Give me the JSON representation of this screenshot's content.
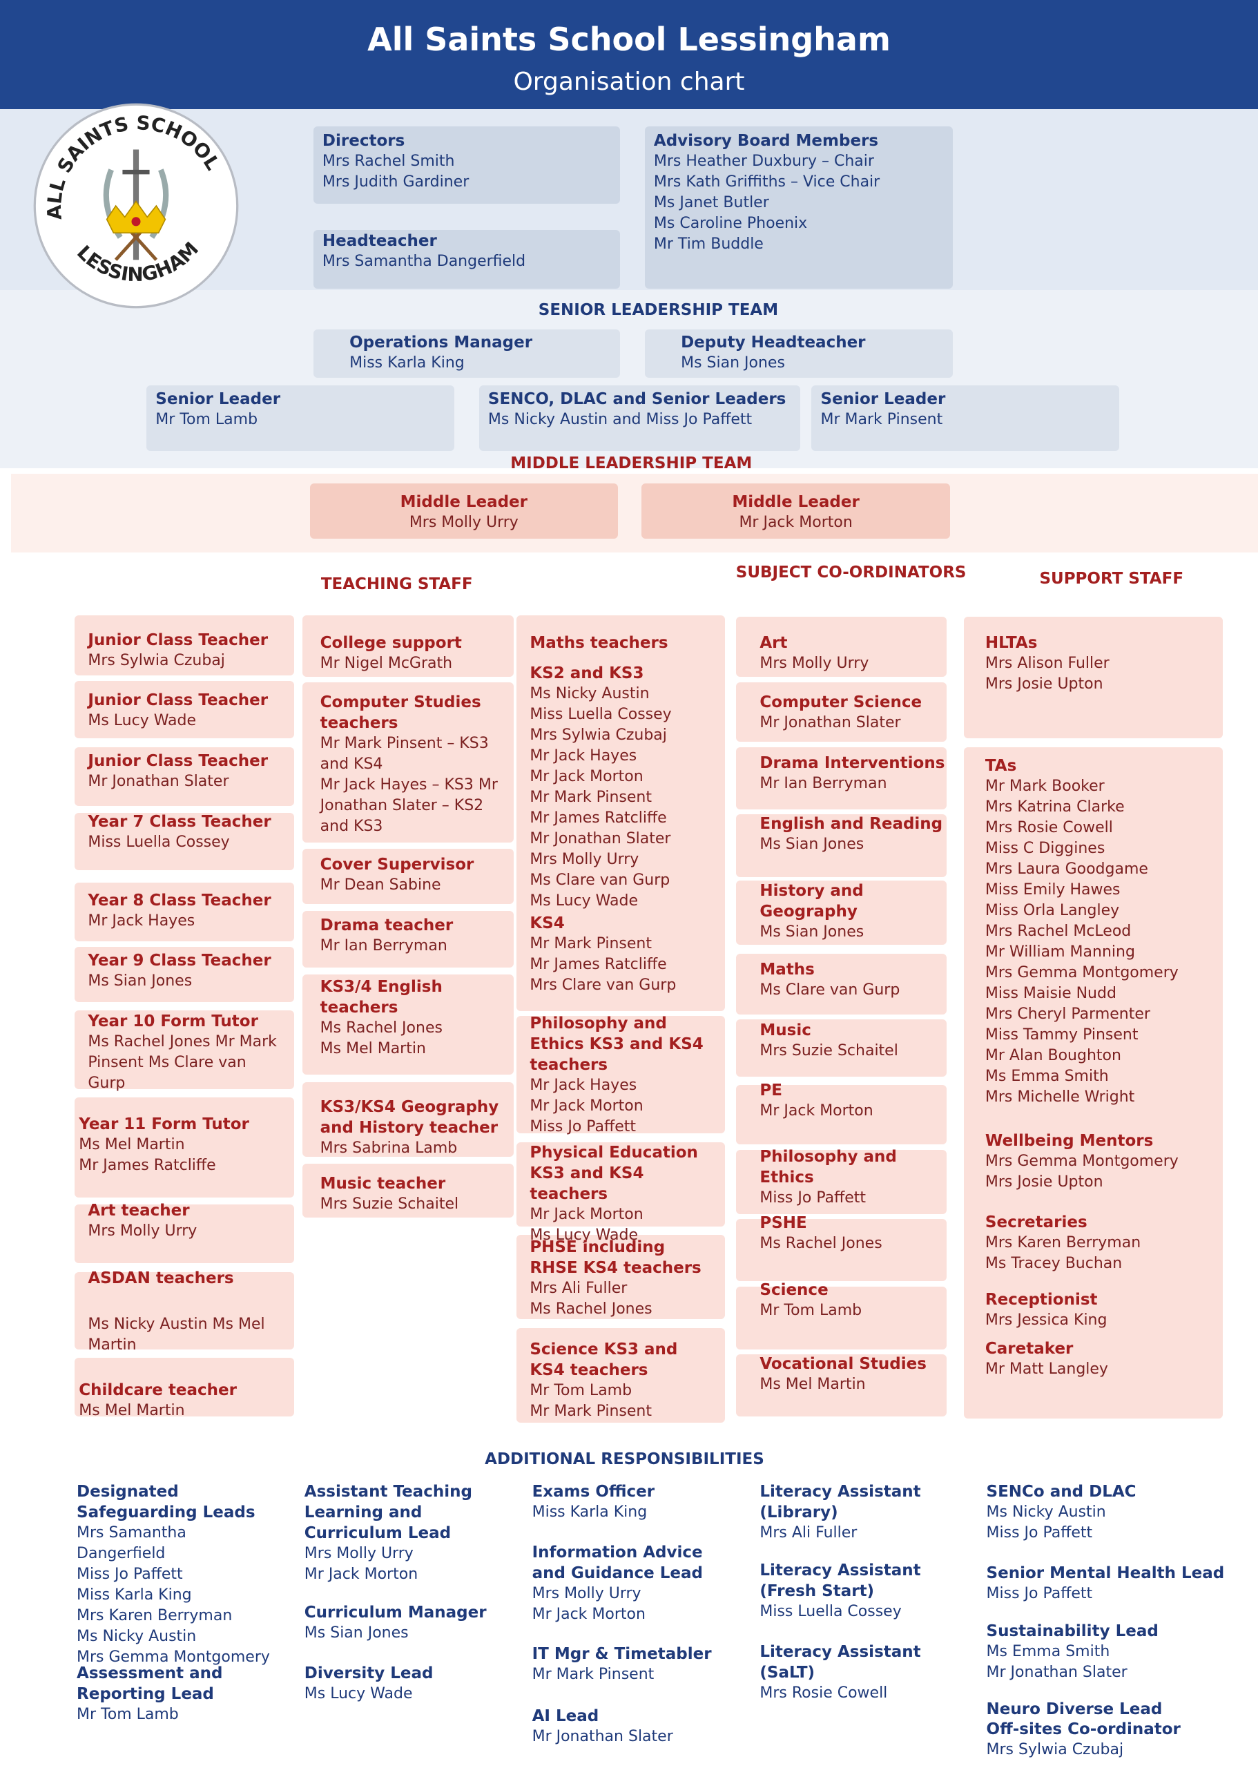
{
  "header": {
    "title": "All Saints School Lessingham",
    "subtitle": "Organisation chart"
  },
  "logo": {
    "top": "ALL SAINTS SCHOOL",
    "bottom": "LESSINGHAM"
  },
  "governance": {
    "items": [
      {
        "title": "Directors",
        "lines": [
          "Mrs Rachel Smith",
          "Mrs Judith Gardiner"
        ]
      },
      {
        "title": "Headteacher",
        "lines": [
          "Mrs Samantha Dangerfield"
        ]
      },
      {
        "title": "Advisory Board Members",
        "lines": [
          "Mrs Heather Duxbury – Chair",
          "Mrs Kath Griffiths – Vice Chair",
          "Ms Janet Butler",
          "Ms Caroline Phoenix",
          "Mr Tim Buddle"
        ]
      }
    ]
  },
  "senior_leadership": {
    "heading": "SENIOR LEADERSHIP TEAM",
    "items": [
      {
        "title": "Operations Manager",
        "lines": [
          "Miss Karla King"
        ]
      },
      {
        "title": "Deputy Headteacher",
        "lines": [
          "Ms Sian Jones"
        ]
      },
      {
        "title": "Senior Leader",
        "lines": [
          "Mr Tom Lamb"
        ]
      },
      {
        "title": "SENCO, DLAC and Senior Leaders",
        "lines": [
          "Ms Nicky Austin and Miss Jo Paffett"
        ]
      },
      {
        "title": "Senior Leader",
        "lines": [
          "Mr Mark Pinsent"
        ]
      }
    ]
  },
  "middle_leadership": {
    "heading": "MIDDLE LEADERSHIP TEAM",
    "items": [
      {
        "title": "Middle Leader",
        "lines": [
          "Mrs Molly Urry"
        ]
      },
      {
        "title": "Middle Leader",
        "lines": [
          "Mr Jack Morton"
        ]
      }
    ]
  },
  "teaching_staff": {
    "heading": "TEACHING STAFF",
    "items": [
      {
        "title": "Junior Class Teacher",
        "lines": [
          "Mrs Sylwia Czubaj"
        ]
      },
      {
        "title": "Junior Class Teacher",
        "lines": [
          "Ms Lucy Wade"
        ]
      },
      {
        "title": "Junior Class Teacher",
        "lines": [
          "Mr Jonathan Slater"
        ]
      },
      {
        "title": "Year 7 Class Teacher",
        "lines": [
          "Miss Luella Cossey"
        ]
      },
      {
        "title": "Year 8 Class Teacher",
        "lines": [
          "Mr Jack Hayes"
        ]
      },
      {
        "title": "Year 9 Class Teacher",
        "lines": [
          "Ms Sian Jones"
        ]
      },
      {
        "title": "Year 10 Form Tutor",
        "lines": [
          "Ms Rachel Jones Mr Mark Pinsent Ms Clare van Gurp"
        ]
      },
      {
        "title": "Year 11 Form Tutor",
        "lines": [
          "Ms Mel Martin",
          "Mr James Ratcliffe"
        ]
      },
      {
        "title": "Art teacher",
        "lines": [
          "Mrs Molly Urry"
        ]
      },
      {
        "title": "ASDAN teachers"
      },
      {
        "lines": [
          "Ms Nicky Austin Ms Mel Martin"
        ]
      },
      {
        "title": "Childcare teacher",
        "lines": [
          "Ms Mel Martin"
        ]
      },
      {
        "title": "College support",
        "lines": [
          "Mr Nigel McGrath"
        ]
      },
      {
        "title": "Computer Studies teachers",
        "lines": [
          "Mr Mark Pinsent – KS3 and KS4",
          "Mr Jack Hayes – KS3 Mr Jonathan Slater – KS2 and KS3"
        ]
      },
      {
        "title": "Cover Supervisor",
        "lines": [
          "Mr Dean Sabine"
        ]
      },
      {
        "title": "Drama teacher",
        "lines": [
          "Mr Ian Berryman"
        ]
      },
      {
        "title": "KS3/4 English teachers",
        "lines": [
          "Ms Rachel Jones",
          "Ms Mel Martin"
        ]
      },
      {
        "title": "KS3/KS4 Geography and History teacher",
        "lines": [
          "Mrs Sabrina Lamb"
        ]
      },
      {
        "title": "Music teacher",
        "lines": [
          "Mrs Suzie Schaitel"
        ]
      },
      {
        "title": "Maths teachers"
      },
      {
        "title": "KS2 and KS3",
        "lines": [
          "Ms Nicky Austin",
          "Miss Luella Cossey",
          "Mrs Sylwia Czubaj",
          "Mr Jack Hayes",
          "Mr Jack Morton",
          "Mr Mark Pinsent",
          "Mr James Ratcliffe",
          "Mr Jonathan Slater",
          "Mrs Molly Urry",
          "Ms Clare van Gurp",
          "Ms Lucy Wade"
        ]
      },
      {
        "title": "KS4",
        "lines": [
          "Mr Mark Pinsent",
          "Mr James Ratcliffe",
          "Mrs Clare van Gurp"
        ]
      },
      {
        "title": "Philosophy and Ethics KS3 and KS4 teachers",
        "lines": [
          "Mr Jack Hayes",
          "Mr Jack Morton",
          "Miss Jo Paffett"
        ]
      },
      {
        "title": "Physical Education KS3 and KS4 teachers",
        "lines": [
          "Mr Jack Morton",
          "Ms Lucy Wade"
        ]
      },
      {
        "title": "PHSE including RHSE KS4 teachers",
        "lines": [
          "Mrs Ali Fuller",
          "Ms Rachel Jones"
        ]
      },
      {
        "title": "Science KS3 and KS4 teachers",
        "lines": [
          "Mr Tom Lamb",
          "Mr Mark Pinsent"
        ]
      }
    ]
  },
  "subject_coordinators": {
    "heading": "SUBJECT CO-ORDINATORS",
    "items": [
      {
        "title": "Art",
        "lines": [
          "Mrs Molly Urry"
        ]
      },
      {
        "title": "Computer Science",
        "lines": [
          "Mr Jonathan Slater"
        ]
      },
      {
        "title": "Drama Interventions",
        "lines": [
          "Mr Ian Berryman"
        ]
      },
      {
        "title": "English and Reading",
        "lines": [
          "Ms Sian Jones"
        ]
      },
      {
        "title": "History and Geography",
        "lines": [
          "Ms Sian Jones"
        ]
      },
      {
        "title": "Maths",
        "lines": [
          "Ms Clare van Gurp"
        ]
      },
      {
        "title": "Music",
        "lines": [
          "Mrs Suzie Schaitel"
        ]
      },
      {
        "title": "PE",
        "lines": [
          "Mr Jack Morton"
        ]
      },
      {
        "title": "Philosophy and Ethics",
        "lines": [
          "Miss Jo Paffett"
        ]
      },
      {
        "title": "PSHE",
        "lines": [
          "Ms Rachel Jones"
        ]
      },
      {
        "title": "Science",
        "lines": [
          "Mr Tom Lamb"
        ]
      },
      {
        "title": "Vocational Studies",
        "lines": [
          "Ms Mel Martin"
        ]
      }
    ]
  },
  "support_staff": {
    "heading": "SUPPORT STAFF",
    "items": [
      {
        "title": "HLTAs",
        "lines": [
          "Mrs Alison Fuller",
          "Mrs Josie Upton"
        ]
      },
      {
        "title": "TAs",
        "lines": [
          "Mr Mark Booker",
          "Mrs Katrina Clarke",
          "Mrs Rosie Cowell",
          "Miss C Diggines",
          "Mrs Laura Goodgame",
          "Miss Emily Hawes",
          "Miss Orla Langley",
          "Mrs Rachel McLeod",
          "Mr William Manning",
          "Mrs Gemma Montgomery",
          "Miss Maisie Nudd",
          "Mrs Cheryl Parmenter",
          "Miss Tammy Pinsent",
          "Mr Alan Boughton",
          "Ms Emma Smith",
          "Mrs Michelle Wright"
        ]
      },
      {
        "title": "Wellbeing Mentors",
        "lines": [
          "Mrs Gemma Montgomery",
          "Mrs Josie Upton"
        ]
      },
      {
        "title": "Secretaries",
        "lines": [
          "Mrs Karen Berryman",
          "Ms Tracey Buchan"
        ]
      },
      {
        "title": "Receptionist",
        "lines": [
          "Mrs Jessica King"
        ]
      },
      {
        "title": "Caretaker",
        "lines": [
          "Mr Matt Langley"
        ]
      }
    ]
  },
  "additional_responsibilities": {
    "heading": "ADDITIONAL RESPONSIBILITIES",
    "items": [
      {
        "title": "Designated Safeguarding Leads",
        "lines": [
          "Mrs Samantha Dangerfield",
          "Miss Jo Paffett",
          "Miss Karla King",
          "Mrs Karen Berryman",
          "Ms Nicky Austin",
          "Mrs Gemma Montgomery"
        ]
      },
      {
        "title": "Assessment and Reporting Lead",
        "lines": [
          "Mr Tom Lamb"
        ]
      },
      {
        "title": "Assistant Teaching Learning and Curriculum Lead",
        "lines": [
          "Mrs Molly Urry",
          "Mr Jack Morton"
        ]
      },
      {
        "title": "Curriculum Manager",
        "lines": [
          "Ms Sian Jones"
        ]
      },
      {
        "title": "Diversity Lead",
        "lines": [
          "Ms Lucy Wade"
        ]
      },
      {
        "title": "Exams Officer",
        "lines": [
          "Miss Karla King"
        ]
      },
      {
        "title": "Information Advice and Guidance Lead",
        "lines": [
          "Mrs Molly Urry",
          "Mr Jack Morton"
        ]
      },
      {
        "title": "IT Mgr & Timetabler",
        "lines": [
          "Mr Mark Pinsent"
        ]
      },
      {
        "title": "AI Lead",
        "lines": [
          "Mr Jonathan Slater"
        ]
      },
      {
        "title": "Literacy Assistant (Library)",
        "lines": [
          "Mrs Ali Fuller"
        ]
      },
      {
        "title": "Literacy Assistant (Fresh Start)",
        "lines": [
          "Miss Luella Cossey"
        ]
      },
      {
        "title": "Literacy Assistant (SaLT)",
        "lines": [
          "Mrs Rosie Cowell"
        ]
      },
      {
        "title": "SENCo and DLAC",
        "lines": [
          "Ms Nicky Austin",
          "Miss Jo Paffett"
        ]
      },
      {
        "title": "Senior Mental Health Lead",
        "lines": [
          "Miss Jo Paffett"
        ]
      },
      {
        "title": "Sustainability Lead",
        "lines": [
          "Ms Emma Smith",
          "Mr Jonathan Slater"
        ]
      },
      {
        "title": "Neuro Diverse Lead"
      },
      {
        "title": "Off-sites Co-ordinator",
        "lines": [
          "Mrs Sylwia Czubaj"
        ]
      }
    ]
  }
}
